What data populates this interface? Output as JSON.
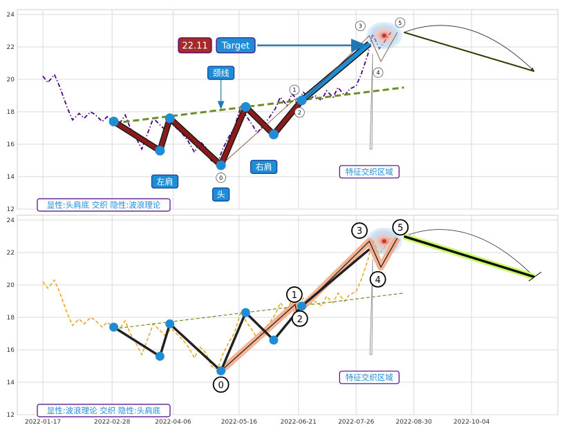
{
  "chart_data": [
    {
      "type": "line",
      "title": "",
      "xlabel": "",
      "ylabel": "",
      "ylim": [
        12,
        24.3
      ],
      "yticks": [
        12,
        14,
        16,
        18,
        20,
        22,
        24
      ],
      "grid": true,
      "x_domain": [
        "2022-01-17",
        "2022-11-14"
      ],
      "price_style": "dash-dot",
      "price_color": "#4b0082",
      "price_series": {
        "x": [
          "2022-01-17",
          "2022-01-20",
          "2022-01-24",
          "2022-01-27",
          "2022-02-01",
          "2022-02-04",
          "2022-02-08",
          "2022-02-11",
          "2022-02-15",
          "2022-02-18",
          "2022-02-22",
          "2022-02-25",
          "2022-03-01",
          "2022-03-04",
          "2022-03-08",
          "2022-03-11",
          "2022-03-15",
          "2022-03-18",
          "2022-03-22",
          "2022-03-25",
          "2022-03-29",
          "2022-04-01",
          "2022-04-05",
          "2022-04-08",
          "2022-04-12",
          "2022-04-15",
          "2022-04-19",
          "2022-04-22",
          "2022-04-26",
          "2022-04-29",
          "2022-05-03",
          "2022-05-06",
          "2022-05-10",
          "2022-05-13",
          "2022-05-17",
          "2022-05-20",
          "2022-05-24",
          "2022-05-27",
          "2022-05-31",
          "2022-06-03",
          "2022-06-07",
          "2022-06-10",
          "2022-06-14",
          "2022-06-17",
          "2022-06-21",
          "2022-06-24",
          "2022-06-28",
          "2022-07-01",
          "2022-07-05",
          "2022-07-08",
          "2022-07-12",
          "2022-07-15",
          "2022-07-19",
          "2022-07-22",
          "2022-07-26",
          "2022-07-29",
          "2022-08-02",
          "2022-08-05",
          "2022-08-09",
          "2022-08-12",
          "2022-08-16"
        ],
        "values": [
          20.2,
          19.8,
          20.3,
          19.6,
          18.2,
          17.5,
          17.9,
          17.6,
          18.0,
          17.8,
          17.4,
          17.7,
          17.4,
          17.2,
          17.8,
          17.0,
          16.3,
          15.7,
          16.8,
          17.6,
          17.2,
          16.9,
          17.3,
          17.0,
          16.6,
          16.2,
          15.5,
          16.2,
          15.8,
          15.0,
          14.8,
          15.7,
          16.5,
          17.0,
          18.3,
          17.8,
          17.2,
          16.7,
          17.2,
          17.6,
          18.2,
          18.9,
          18.4,
          19.1,
          18.7,
          19.2,
          18.8,
          19.0,
          18.7,
          19.3,
          18.9,
          19.5,
          19.0,
          19.4,
          19.6,
          20.3,
          21.5,
          22.8,
          21.9,
          22.3,
          22.9
        ]
      },
      "neckline": {
        "x": [
          "2022-03-01",
          "2022-08-24"
        ],
        "values": [
          17.3,
          19.5
        ],
        "color": "#6b8e23",
        "style": "dashed"
      },
      "hs_pattern": {
        "x": [
          "2022-03-01",
          "2022-03-29",
          "2022-04-04",
          "2022-05-05",
          "2022-05-20",
          "2022-06-06",
          "2022-06-23",
          "2022-08-03"
        ],
        "values": [
          17.4,
          15.6,
          17.6,
          14.7,
          18.3,
          16.6,
          18.7,
          22.2
        ],
        "color": "#8b1a1a",
        "marker_color": "#1f8dd6"
      },
      "wave_points": [
        {
          "label": "0",
          "x": "2022-05-05",
          "value": 14.7
        },
        {
          "label": "1",
          "x": "2022-06-19",
          "value": 18.8
        },
        {
          "label": "2",
          "x": "2022-06-20",
          "value": 18.3
        },
        {
          "label": "3",
          "x": "2022-08-03",
          "value": 22.7
        },
        {
          "label": "4",
          "x": "2022-08-10",
          "value": 21.1
        },
        {
          "label": "5",
          "x": "2022-08-20",
          "value": 22.9
        }
      ],
      "projection": {
        "x": [
          "2022-08-24",
          "2022-11-11"
        ],
        "values": [
          22.9,
          20.5
        ],
        "color": "#2e3b00"
      },
      "annotations": {
        "target_value": "22.11",
        "target_label": "Target",
        "neckline_label": "颈线",
        "left_shoulder": "左肩",
        "head": "头",
        "right_shoulder": "右肩",
        "zone": "特征交织区域",
        "legend": "显性:头肩底 交织 隐性:波浪理论"
      }
    },
    {
      "type": "line",
      "title": "",
      "xlabel": "",
      "ylabel": "",
      "ylim": [
        12,
        24.3
      ],
      "yticks": [
        12,
        14,
        16,
        18,
        20,
        22,
        24
      ],
      "grid": true,
      "x_domain": [
        "2022-01-17",
        "2022-11-14"
      ],
      "xticks": [
        "2022-01-17",
        "2022-02-28",
        "2022-04-06",
        "2022-05-16",
        "2022-06-21",
        "2022-07-26",
        "2022-08-30",
        "2022-10-04"
      ],
      "price_style": "dashed",
      "price_color": "#e8a317",
      "neckline": {
        "x": [
          "2022-03-01",
          "2022-08-24"
        ],
        "values": [
          17.3,
          19.5
        ],
        "color": "#6b8e23",
        "style": "dashed"
      },
      "hs_pattern": {
        "x": [
          "2022-03-01",
          "2022-03-29",
          "2022-04-04",
          "2022-05-05",
          "2022-05-20",
          "2022-06-06",
          "2022-06-23",
          "2022-08-03"
        ],
        "values": [
          17.4,
          15.6,
          17.6,
          14.7,
          18.3,
          16.6,
          18.7,
          22.2
        ],
        "color": "#222222",
        "marker_color": "#1f8dd6"
      },
      "wave_points": [
        {
          "label": "0",
          "x": "2022-05-05",
          "value": 14.7
        },
        {
          "label": "1",
          "x": "2022-06-19",
          "value": 18.8
        },
        {
          "label": "2",
          "x": "2022-06-20",
          "value": 18.3
        },
        {
          "label": "3",
          "x": "2022-08-03",
          "value": 22.7
        },
        {
          "label": "4",
          "x": "2022-08-10",
          "value": 21.1
        },
        {
          "label": "5",
          "x": "2022-08-20",
          "value": 22.9
        }
      ],
      "projection": {
        "x": [
          "2022-08-24",
          "2022-11-11"
        ],
        "values": [
          23.0,
          20.5
        ],
        "color": "#111111",
        "highlight": "#ccff66"
      },
      "annotations": {
        "zone": "特征交织区域",
        "legend": "显性:波浪理论 交织 隐性:头肩底"
      }
    }
  ]
}
